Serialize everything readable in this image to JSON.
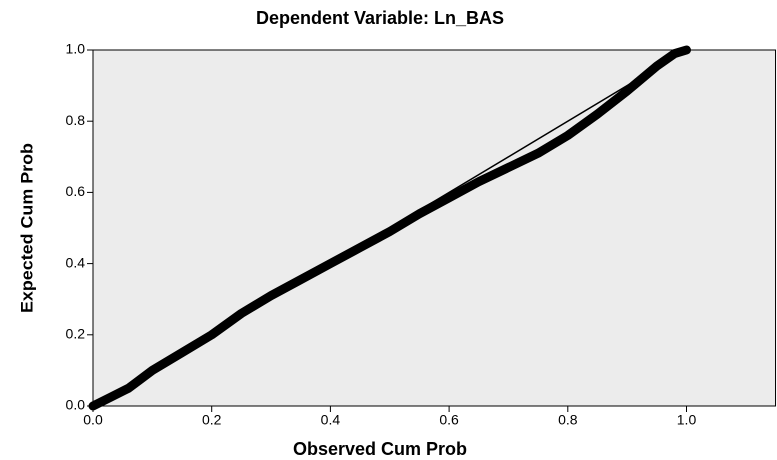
{
  "chart_data": {
    "type": "pp-plot",
    "title": "Dependent Variable: Ln_BAS",
    "x_label": "Observed Cum Prob",
    "y_label": "Expected Cum Prob",
    "x": [
      0,
      0.03,
      0.06,
      0.1,
      0.15,
      0.2,
      0.25,
      0.3,
      0.35,
      0.4,
      0.45,
      0.5,
      0.55,
      0.6,
      0.65,
      0.7,
      0.75,
      0.8,
      0.85,
      0.9,
      0.95,
      0.98,
      1.0
    ],
    "series": [
      {
        "color": "#000000",
        "values": [
          0,
          0.025,
          0.05,
          0.1,
          0.15,
          0.2,
          0.26,
          0.31,
          0.355,
          0.4,
          0.445,
          0.49,
          0.54,
          0.585,
          0.63,
          0.67,
          0.71,
          0.76,
          0.82,
          0.885,
          0.955,
          0.99,
          1.0
        ]
      }
    ],
    "reference_line": {
      "x": [
        0,
        1
      ],
      "y": [
        0,
        1
      ]
    },
    "xlim": [
      0,
      1.15
    ],
    "ylim": [
      0,
      1
    ],
    "xticks": [
      {
        "value": 0,
        "label": "0.0"
      },
      0.2,
      0.4,
      0.6,
      0.8,
      {
        "value": 1,
        "label": "1.0"
      }
    ],
    "yticks": [
      {
        "value": 0,
        "label": "0.0"
      },
      0.2,
      0.4,
      0.6,
      0.8,
      {
        "value": 1,
        "label": "1.0"
      }
    ],
    "background": "#ececec"
  }
}
